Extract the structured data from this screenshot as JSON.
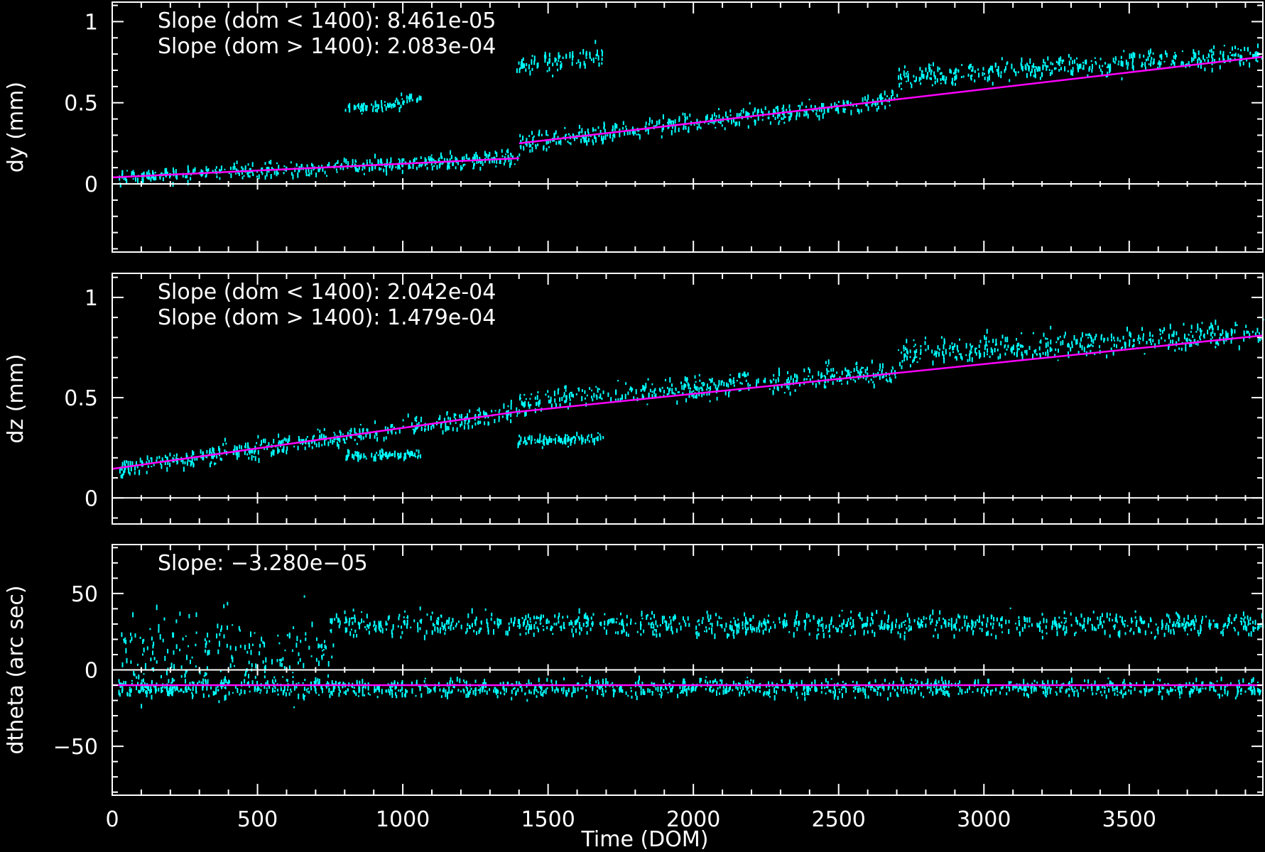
{
  "colors": {
    "background": "#000000",
    "axes": "#ffffff",
    "points": "#00ffff",
    "fit": "#ff00ff",
    "zero_line": "#ffffff"
  },
  "chart_data": [
    {
      "type": "scatter",
      "ylabel": "dy (mm)",
      "xlim": [
        0,
        3960
      ],
      "ylim": [
        -0.42,
        1.12
      ],
      "y_ticks": [
        0,
        0.5,
        1
      ],
      "y_tick_labels": [
        "0",
        "0.5",
        "1"
      ],
      "zero_line": true,
      "annotations": [
        "Slope (dom < 1400): 8.461e-05",
        "Slope (dom > 1400): 2.083e-04"
      ],
      "fit_segments": [
        {
          "x": [
            0,
            1400
          ],
          "y": [
            0.04,
            0.158
          ]
        },
        {
          "x": [
            1400,
            3960
          ],
          "y": [
            0.25,
            0.783
          ]
        }
      ],
      "clusters": [
        {
          "x0": 20,
          "x1": 1400,
          "y0": 0.04,
          "y1": 0.158,
          "spread": 0.05
        },
        {
          "x0": 1400,
          "x1": 2700,
          "y0": 0.25,
          "y1": 0.52,
          "spread": 0.06
        },
        {
          "x0": 2700,
          "x1": 3960,
          "y0": 0.66,
          "y1": 0.8,
          "spread": 0.07
        },
        {
          "x0": 800,
          "x1": 1060,
          "y0": 0.45,
          "y1": 0.52,
          "spread": 0.035
        },
        {
          "x0": 1390,
          "x1": 1690,
          "y0": 0.72,
          "y1": 0.8,
          "spread": 0.06
        }
      ]
    },
    {
      "type": "scatter",
      "ylabel": "dz (mm)",
      "xlim": [
        0,
        3960
      ],
      "ylim": [
        -0.13,
        1.12
      ],
      "y_ticks": [
        0,
        0.5,
        1
      ],
      "y_tick_labels": [
        "0",
        "0.5",
        "1"
      ],
      "zero_line": true,
      "annotations": [
        "Slope (dom < 1400): 2.042e-04",
        "Slope (dom > 1400): 1.479e-04"
      ],
      "fit_segments": [
        {
          "x": [
            0,
            1400
          ],
          "y": [
            0.145,
            0.431
          ]
        },
        {
          "x": [
            1400,
            3960
          ],
          "y": [
            0.43,
            0.81
          ]
        }
      ],
      "clusters": [
        {
          "x0": 20,
          "x1": 1400,
          "y0": 0.15,
          "y1": 0.43,
          "spread": 0.05
        },
        {
          "x0": 1400,
          "x1": 2700,
          "y0": 0.48,
          "y1": 0.63,
          "spread": 0.06
        },
        {
          "x0": 2700,
          "x1": 3960,
          "y0": 0.72,
          "y1": 0.82,
          "spread": 0.07
        },
        {
          "x0": 800,
          "x1": 1060,
          "y0": 0.21,
          "y1": 0.22,
          "spread": 0.025
        },
        {
          "x0": 1390,
          "x1": 1690,
          "y0": 0.28,
          "y1": 0.3,
          "spread": 0.03
        }
      ]
    },
    {
      "type": "scatter",
      "ylabel": "dtheta (arc sec)",
      "xlabel": "Time (DOM)",
      "xlim": [
        0,
        3960
      ],
      "ylim": [
        -82,
        82
      ],
      "y_ticks": [
        -50,
        0,
        50
      ],
      "y_tick_labels": [
        "−50",
        "0",
        "50"
      ],
      "x_ticks": [
        0,
        500,
        1000,
        1500,
        2000,
        2500,
        3000,
        3500
      ],
      "x_tick_labels": [
        "0",
        "500",
        "1000",
        "1500",
        "2000",
        "2500",
        "3000",
        "3500"
      ],
      "zero_line": true,
      "annotations": [
        "Slope: −3.280e−05"
      ],
      "fit_segments": [
        {
          "x": [
            0,
            3960
          ],
          "y": [
            -10,
            -10
          ]
        }
      ],
      "clusters": [
        {
          "x0": 20,
          "x1": 3960,
          "y0": -12,
          "y1": -12,
          "spread": 6
        },
        {
          "x0": 750,
          "x1": 3960,
          "y0": 30,
          "y1": 30,
          "spread": 8
        },
        {
          "x0": 30,
          "x1": 760,
          "y0": 10,
          "y1": 10,
          "spread": 30
        }
      ]
    }
  ]
}
